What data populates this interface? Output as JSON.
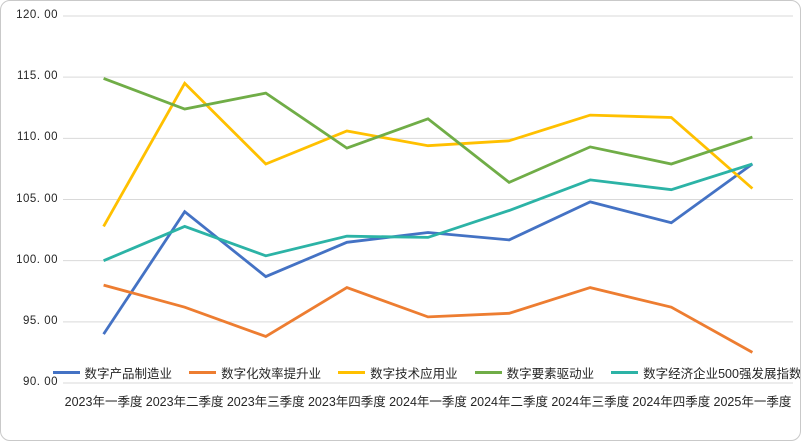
{
  "chart_data": {
    "type": "line",
    "title": "",
    "xlabel": "",
    "ylabel": "",
    "categories": [
      "2023年一季度",
      "2023年二季度",
      "2023年三季度",
      "2023年四季度",
      "2024年一季度",
      "2024年二季度",
      "2024年三季度",
      "2024年四季度",
      "2025年一季度"
    ],
    "series": [
      {
        "name": "数字产品制造业",
        "color": "#4472C4",
        "values": [
          94.0,
          104.0,
          98.7,
          101.5,
          102.3,
          101.7,
          104.8,
          103.1,
          107.9
        ]
      },
      {
        "name": "数字化效率提升业",
        "color": "#ED7D31",
        "values": [
          98.0,
          96.2,
          93.8,
          97.8,
          95.4,
          95.7,
          97.8,
          96.2,
          92.5
        ]
      },
      {
        "name": "数字技术应用业",
        "color": "#FFC000",
        "values": [
          102.8,
          114.5,
          107.9,
          110.6,
          109.4,
          109.8,
          111.9,
          111.7,
          105.9
        ]
      },
      {
        "name": "数字要素驱动业",
        "color": "#70AD47",
        "values": [
          114.9,
          112.4,
          113.7,
          109.2,
          111.6,
          106.4,
          109.3,
          107.9,
          110.1
        ]
      },
      {
        "name": "数字经济企业500强发展指数",
        "color": "#2CB3A6",
        "values": [
          100.0,
          102.8,
          100.4,
          102.0,
          101.9,
          104.1,
          106.6,
          105.8,
          107.9
        ]
      }
    ],
    "ylim": [
      90,
      120
    ],
    "y_ticks": [
      120,
      115,
      110,
      105,
      100,
      95,
      90
    ],
    "y_tick_labels": [
      "120. 00",
      "115. 00",
      "110. 00",
      "105. 00",
      "100. 00",
      "95. 00",
      "90. 00"
    ],
    "grid": "horizontal",
    "legend_position": "bottom"
  },
  "colors": {
    "background": "#FFFFFF",
    "grid": "#D9D9D9",
    "border": "#C9C9C9",
    "text": "#262626"
  }
}
